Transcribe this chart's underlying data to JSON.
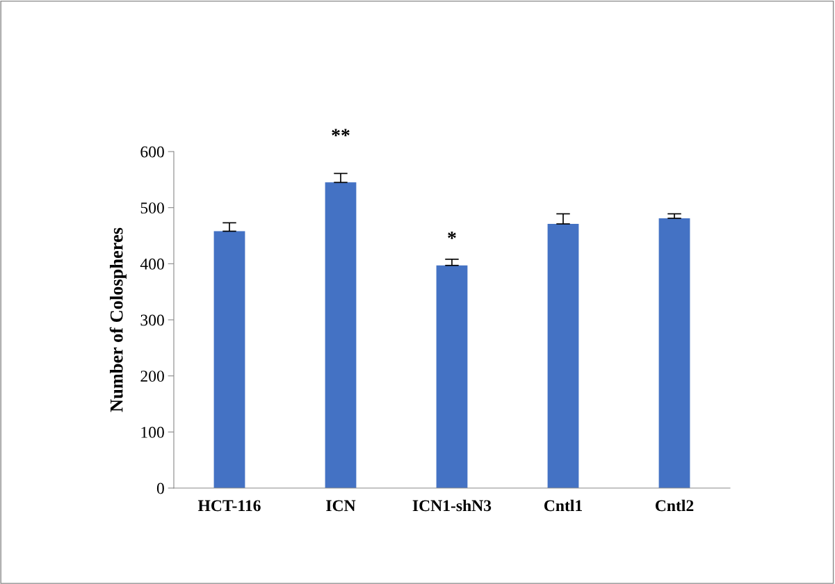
{
  "chart_data": {
    "type": "bar",
    "ylabel": "Number of Colospheres",
    "categories": [
      "HCT-116",
      "ICN",
      "ICN1-shN3",
      "Cntl1",
      "Cntl2"
    ],
    "values": [
      458,
      545,
      397,
      471,
      481
    ],
    "errors": [
      [
        458,
        473
      ],
      [
        545,
        561
      ],
      [
        397,
        408
      ],
      [
        471,
        489
      ],
      [
        481,
        489
      ]
    ],
    "color": "#4472c4",
    "ylim": [
      0,
      600
    ],
    "yticks": [
      0,
      100,
      200,
      300,
      400,
      500,
      600
    ],
    "grid": false,
    "legend": false,
    "annotations": [
      "**",
      "*"
    ]
  }
}
